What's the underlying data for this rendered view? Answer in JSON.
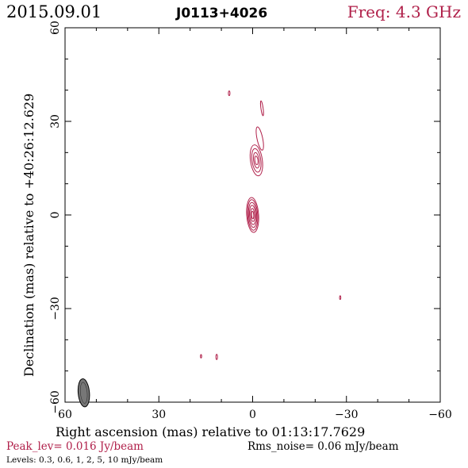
{
  "header": {
    "date": "2015.09.01",
    "source": "J0113+4026",
    "freq": "Freq: 4.3 GHz"
  },
  "footer": {
    "peak": "Peak_lev=  0.016 Jy/beam",
    "rms": "Rms_noise= 0.06 mJy/beam",
    "levels": "Levels: 0.3, 0.6,   1,   2,   5,  10 mJy/beam"
  },
  "colors": {
    "contour": "#b0204a",
    "axis": "#000000",
    "beam_fill": "#777777"
  },
  "chart_data": {
    "type": "contour",
    "title": "",
    "xlabel": "Right ascension (mas) relative to 01:13:17.7629",
    "ylabel": "Declination (mas) relative to +40:26:12.629",
    "xlim": [
      60,
      -60
    ],
    "ylim": [
      -60,
      60
    ],
    "xticks": [
      60,
      30,
      0,
      -30,
      -60
    ],
    "yticks": [
      60,
      30,
      0,
      -30,
      -60
    ],
    "xtick_labels": [
      "60",
      "30",
      "0",
      "−30",
      "−60"
    ],
    "ytick_labels": [
      "60",
      "30",
      "0",
      "−30",
      "−60"
    ],
    "levels_mJy": [
      0.3,
      0.6,
      1,
      2,
      5,
      10
    ],
    "peak_Jy_per_beam": 0.016,
    "rms_mJy_per_beam": 0.06,
    "beam": {
      "x": 54,
      "y": -57,
      "major": 4.5,
      "minor": 1.8,
      "pa_deg": -5
    },
    "components": [
      {
        "name": "core",
        "x": 0,
        "y": 0,
        "contours": [
          {
            "rx": 1.9,
            "ry": 5.6,
            "angle": -4
          },
          {
            "rx": 1.6,
            "ry": 4.9,
            "angle": -4
          },
          {
            "rx": 1.3,
            "ry": 4.0,
            "angle": -4
          },
          {
            "rx": 1.0,
            "ry": 3.1,
            "angle": -4
          },
          {
            "rx": 0.65,
            "ry": 2.1,
            "angle": -4
          },
          {
            "rx": 0.35,
            "ry": 1.2,
            "angle": -4
          }
        ]
      },
      {
        "name": "jet-knot",
        "x": -1.2,
        "y": 17.5,
        "contours": [
          {
            "rx": 1.9,
            "ry": 5.0,
            "angle": -8
          },
          {
            "rx": 1.4,
            "ry": 3.8,
            "angle": -8
          },
          {
            "rx": 0.9,
            "ry": 2.5,
            "angle": -8
          },
          {
            "rx": 0.5,
            "ry": 1.4,
            "angle": -8
          }
        ]
      },
      {
        "name": "jet-upper",
        "x": -2.3,
        "y": 24.5,
        "contours": [
          {
            "rx": 0.9,
            "ry": 3.8,
            "angle": -12
          }
        ]
      },
      {
        "name": "jet-tip",
        "x": -3.0,
        "y": 34.2,
        "contours": [
          {
            "rx": 0.35,
            "ry": 2.4,
            "angle": -8
          }
        ]
      },
      {
        "name": "spot-1",
        "x": 7.5,
        "y": 39.0,
        "contours": [
          {
            "rx": 0.25,
            "ry": 0.75,
            "angle": 0
          }
        ]
      },
      {
        "name": "spot-2",
        "x": 16.5,
        "y": -45.3,
        "contours": [
          {
            "rx": 0.2,
            "ry": 0.55,
            "angle": 0
          }
        ]
      },
      {
        "name": "spot-3",
        "x": 11.5,
        "y": -45.5,
        "contours": [
          {
            "rx": 0.25,
            "ry": 0.85,
            "angle": 0
          }
        ]
      },
      {
        "name": "spot-4",
        "x": -28.0,
        "y": -26.5,
        "contours": [
          {
            "rx": 0.2,
            "ry": 0.6,
            "angle": 0
          }
        ]
      }
    ]
  }
}
